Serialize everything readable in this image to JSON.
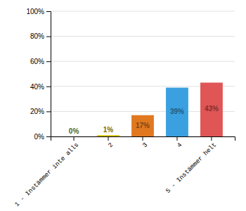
{
  "chart_data": {
    "type": "bar",
    "categories": [
      "1 - Instämmer inte alls",
      "2",
      "3",
      "4",
      "5 - Instämmer helt"
    ],
    "values": [
      0,
      1,
      17,
      39,
      43
    ],
    "value_labels": [
      "0%",
      "1%",
      "17%",
      "39%",
      "43%"
    ],
    "data_labels": true,
    "colors": [
      "#7db832",
      "#d4c200",
      "#e07820",
      "#3ba0e0",
      "#e05555"
    ],
    "ylim": [
      0,
      100
    ],
    "yticks": [
      {
        "value": 0,
        "label": "0%"
      },
      {
        "value": 20,
        "label": "20%"
      },
      {
        "value": 40,
        "label": "40%"
      },
      {
        "value": 60,
        "label": "60%"
      },
      {
        "value": 80,
        "label": "80%"
      },
      {
        "value": 100,
        "label": "100%"
      }
    ],
    "grid": true
  }
}
